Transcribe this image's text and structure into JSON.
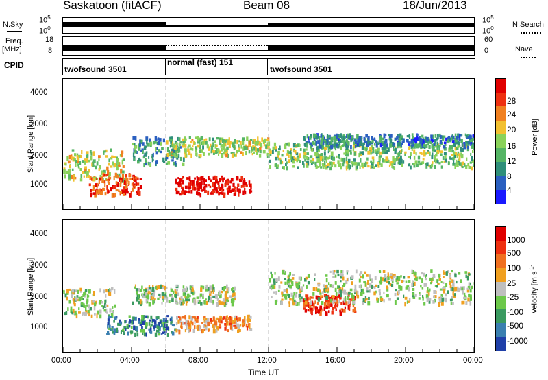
{
  "header": {
    "radar": "Saskatoon (fitACF)",
    "beam": "Beam 08",
    "date": "18/Jun/2013"
  },
  "nsky": {
    "label": "N.Sky",
    "ticks": [
      "10^5",
      "10^0"
    ],
    "right_ticks": [
      "10^5",
      "10^0"
    ],
    "right_label": "N.Search"
  },
  "freq": {
    "label_line1": "Freq.",
    "label_line2": "[MHz]",
    "ticks": [
      "18",
      "8"
    ],
    "right_ticks": [
      "60",
      "0"
    ],
    "right_label": "Nave"
  },
  "cpid": {
    "label": "CPID",
    "segments": [
      {
        "name": "twofsound 3501",
        "start_h": 0,
        "end_h": 6
      },
      {
        "name": "normal (fast) 151",
        "start_h": 6,
        "end_h": 12
      },
      {
        "name": "twofsound 3501",
        "start_h": 12,
        "end_h": 24
      }
    ]
  },
  "time_axis": {
    "label": "Time UT",
    "ticks": [
      "00:00",
      "04:00",
      "08:00",
      "12:00",
      "16:00",
      "20:00",
      "00:00"
    ],
    "range_hours": [
      0,
      24
    ]
  },
  "power_panel": {
    "ylabel": "Slant Range [km]",
    "yticks": [
      "1000",
      "2000",
      "3000",
      "4000"
    ],
    "colorbar_label": "Power [dB]",
    "colorbar_ticks": [
      "28",
      "24",
      "20",
      "16",
      "12",
      "8",
      "4"
    ],
    "colors": [
      "#1a1aff",
      "#2a5fc0",
      "#2f8f7a",
      "#55b565",
      "#8ad25a",
      "#f2c030",
      "#f08020",
      "#ee3010",
      "#e00000"
    ]
  },
  "velocity_panel": {
    "ylabel": "Slant Range [km]",
    "yticks": [
      "1000",
      "2000",
      "3000",
      "4000"
    ],
    "colorbar_label": "Velocity [m s^-1]",
    "colorbar_ticks": [
      "1000",
      "500",
      "100",
      "25",
      "-25",
      "-100",
      "-500",
      "-1000"
    ],
    "colors": [
      "#1f3fa8",
      "#3a7fb0",
      "#3a9a60",
      "#6cc84a",
      "#bfbfbf",
      "#f0a020",
      "#f07020",
      "#ee3010",
      "#e00000"
    ]
  },
  "chart_data": {
    "type": "heatmap",
    "title": "Saskatoon (fitACF) Beam 08 18/Jun/2013",
    "xlabel": "Time UT",
    "ylabel": "Slant Range [km]",
    "xlim_hours": [
      0,
      24
    ],
    "ylim_km": [
      180,
      4500
    ],
    "series": [
      {
        "name": "Power [dB]",
        "blobs": [
          {
            "t0": 0.0,
            "t1": 3.5,
            "r0": 1200,
            "r1": 2200,
            "level": 0.55
          },
          {
            "t0": 1.5,
            "t1": 4.5,
            "r0": 700,
            "r1": 1400,
            "level": 0.85
          },
          {
            "t0": 4.0,
            "t1": 7.0,
            "r0": 1700,
            "r1": 2600,
            "level": 0.3
          },
          {
            "t0": 6.5,
            "t1": 11.0,
            "r0": 700,
            "r1": 1300,
            "level": 0.95
          },
          {
            "t0": 6.0,
            "t1": 12.0,
            "r0": 2000,
            "r1": 2600,
            "level": 0.5
          },
          {
            "t0": 12.0,
            "t1": 24.0,
            "r0": 1600,
            "r1": 2400,
            "level": 0.45
          },
          {
            "t0": 14.0,
            "t1": 24.0,
            "r0": 2300,
            "r1": 2700,
            "level": 0.25
          }
        ]
      },
      {
        "name": "Velocity [m s^-1]",
        "blobs": [
          {
            "t0": 0.0,
            "t1": 3.0,
            "r0": 1400,
            "r1": 2300,
            "level": 0.45
          },
          {
            "t0": 2.5,
            "t1": 6.5,
            "r0": 800,
            "r1": 1400,
            "level": 0.2
          },
          {
            "t0": 6.5,
            "t1": 11.0,
            "r0": 900,
            "r1": 1400,
            "level": 0.65
          },
          {
            "t0": 14.0,
            "t1": 17.0,
            "r0": 1500,
            "r1": 2100,
            "level": 0.85
          },
          {
            "t0": 12.0,
            "t1": 24.0,
            "r0": 1800,
            "r1": 2900,
            "level": 0.45
          },
          {
            "t0": 4.0,
            "t1": 10.0,
            "r0": 1800,
            "r1": 2400,
            "level": 0.45
          }
        ]
      }
    ]
  }
}
